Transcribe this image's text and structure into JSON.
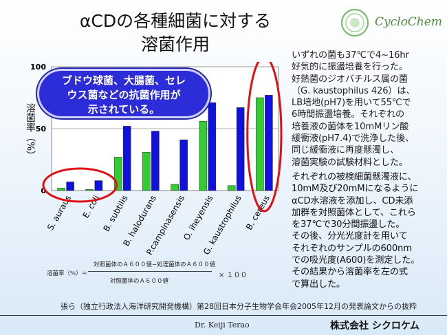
{
  "title": [
    "αCDの各種細菌に対する",
    "溶菌作用"
  ],
  "logo_text": "CycloChem",
  "callout_lines": [
    "ブドウ球菌、大腸菌、セレ",
    "ウス菌などの抗菌作用が",
    "示されている。"
  ],
  "description": {
    "paragraph1": "いずれの菌も37℃で4~16hr\n好気的に振盪培養を行った。\n好熱菌のジオバチルス属の菌\n（G. kaustophilus 426）は、\nLB培地(pH7)を用いて55℃で\n6時間振盪培養。それぞれの\n培養液の菌体を10mMリン酸\n緩衝液(pH7.4)で洗浄した後、\n同じ緩衝液に再度懸濁し、\n溶菌実験の試験材料とした。",
    "paragraph2": "それぞれの被検細菌懸濁液に、\n10mM及び20mMになるように\nαCD水溶液を添加し、CD未添\n加群を対照菌体として、これら\nを37℃で30分間振盪した。\nその後、分光光度計を用いて\nそれぞれのサンプルの600nm\nでの吸光度(A600)を測定した。\nその結果から溶菌率を左の式\nで算出した。"
  },
  "formula": {
    "label": "溶菌率（%）＝",
    "numerator": "対照菌体のＡ６００値−処理菌体のＡ６００値",
    "denominator": "対照菌体のＡ６００値",
    "multiplier": "× １００"
  },
  "source": "張ら（独立行政法人海洋研究開発機構）第28回日本分子生物学会年会2005年12月の発表論文からの抜粋",
  "author": "Dr. Keiji Terao",
  "company": "株式会社 シクロケム",
  "chart_data": {
    "type": "bar",
    "ylabel": "溶菌率（%）",
    "ylim": [
      0,
      100
    ],
    "yticks": [
      0,
      50,
      100
    ],
    "categories": [
      "S. auraus",
      "E. coli",
      "B. subtilis",
      "B. halodurans",
      "P.campinasensis",
      "O. iheyensis",
      "G. kaustrophilus",
      "B. cereus"
    ],
    "series": [
      {
        "values": [
          2,
          1,
          27,
          31,
          5,
          56,
          4,
          75
        ]
      },
      {
        "values": [
          7,
          8,
          52,
          48,
          41,
          71,
          67,
          77
        ]
      }
    ],
    "colors": [
      "#33cc33",
      "#1111dd"
    ],
    "highlight_categories": [
      "S. auraus",
      "E. coli",
      "B. cereus"
    ],
    "grid": true
  }
}
